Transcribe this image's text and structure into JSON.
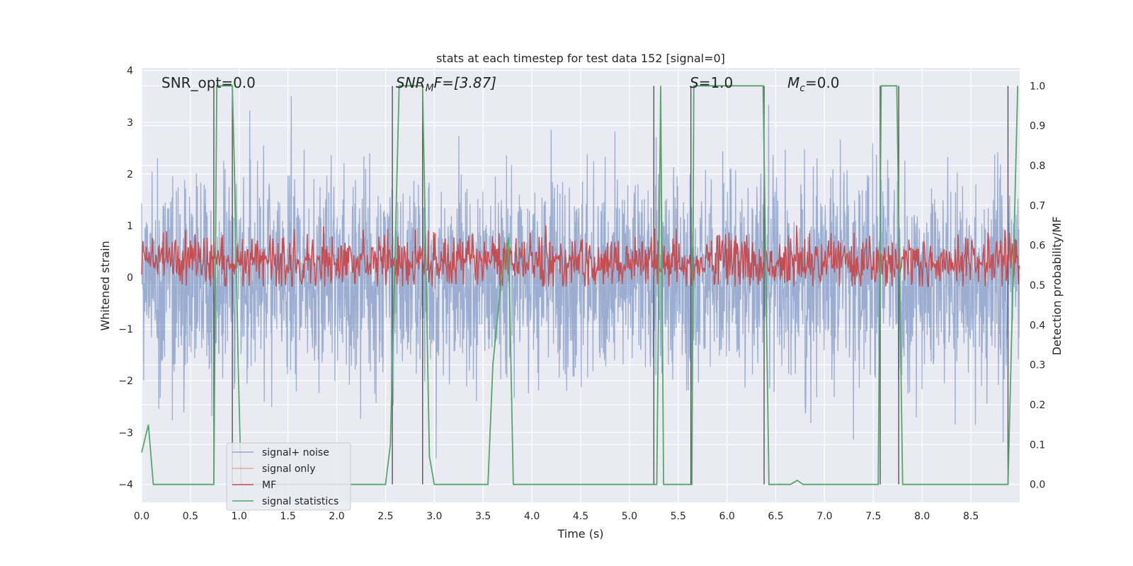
{
  "chart_data": {
    "type": "line",
    "title": "stats at each timestep for test data 152 [signal=0]",
    "xlabel": "Time (s)",
    "ylabel": "Whitened strain",
    "y2label": "Detection probability/MF",
    "xlim": [
      0.0,
      9.0
    ],
    "ylim": [
      -4.35,
      4.05
    ],
    "y2lim": [
      -0.045,
      1.045
    ],
    "x_ticks": [
      "0.0",
      "0.5",
      "1.0",
      "1.5",
      "2.0",
      "2.5",
      "3.0",
      "3.5",
      "4.0",
      "4.5",
      "5.0",
      "5.5",
      "6.0",
      "6.5",
      "7.0",
      "7.5",
      "8.0",
      "8.5"
    ],
    "y_ticks": [
      "4",
      "3",
      "2",
      "1",
      "0",
      "−1",
      "−2",
      "−3",
      "−4"
    ],
    "y2_ticks": [
      "1.0",
      "0.9",
      "0.8",
      "0.7",
      "0.6",
      "0.5",
      "0.4",
      "0.3",
      "0.2",
      "0.1",
      "0.0"
    ],
    "grid": true,
    "legend_position": "lower-left",
    "annotations": {
      "snr_opt": "SNR_opt=0.0",
      "snr_mf_base": "SNR",
      "snr_mf_sub": "M",
      "snr_mf_rest": "F=[3.87]",
      "s_label": "S",
      "s_value": "=1.0",
      "mc_label": "M",
      "mc_sub": "c",
      "mc_value": "=0.0"
    },
    "series": [
      {
        "name": "signal+ noise",
        "color": "#4c72b0",
        "axis": "left",
        "noise_std": 1.0,
        "max_abs": 3.5
      },
      {
        "name": "signal only",
        "color": "#dd8452",
        "axis": "left",
        "values": [
          0
        ]
      },
      {
        "name": "MF",
        "color": "#c44e52",
        "axis": "right",
        "baseline": 0.56,
        "amplitude": 0.06
      },
      {
        "name": "signal statistics",
        "color": "#55a868",
        "axis": "right",
        "x": [
          0.0,
          0.07,
          0.12,
          0.2,
          0.3,
          0.4,
          0.5,
          0.74,
          0.77,
          0.93,
          0.95,
          0.99,
          1.02,
          2.5,
          2.55,
          2.64,
          2.88,
          2.95,
          3.0,
          3.55,
          3.6,
          3.68,
          3.76,
          3.81,
          5.28,
          5.32,
          5.35,
          5.64,
          5.66,
          6.37,
          6.43,
          6.65,
          6.72,
          6.78,
          7.55,
          7.58,
          7.71,
          7.74,
          7.8,
          7.87,
          8.88,
          8.98
        ],
        "y": [
          0.08,
          0.15,
          0.0,
          0.0,
          0.0,
          0.0,
          0.0,
          0.0,
          1.0,
          1.0,
          0.8,
          0.3,
          0.0,
          0.0,
          0.1,
          1.0,
          1.0,
          0.07,
          0.0,
          0.0,
          0.3,
          0.5,
          0.62,
          0.0,
          0.0,
          1.0,
          0.0,
          0.0,
          1.0,
          1.0,
          0.0,
          0.0,
          0.01,
          0.0,
          0.0,
          1.0,
          1.0,
          1.0,
          0.0,
          0.0,
          0.0,
          1.0
        ]
      }
    ],
    "vertical_lines": [
      0.74,
      0.93,
      2.57,
      2.88,
      5.25,
      5.63,
      6.38,
      7.57,
      7.76,
      8.88
    ]
  }
}
